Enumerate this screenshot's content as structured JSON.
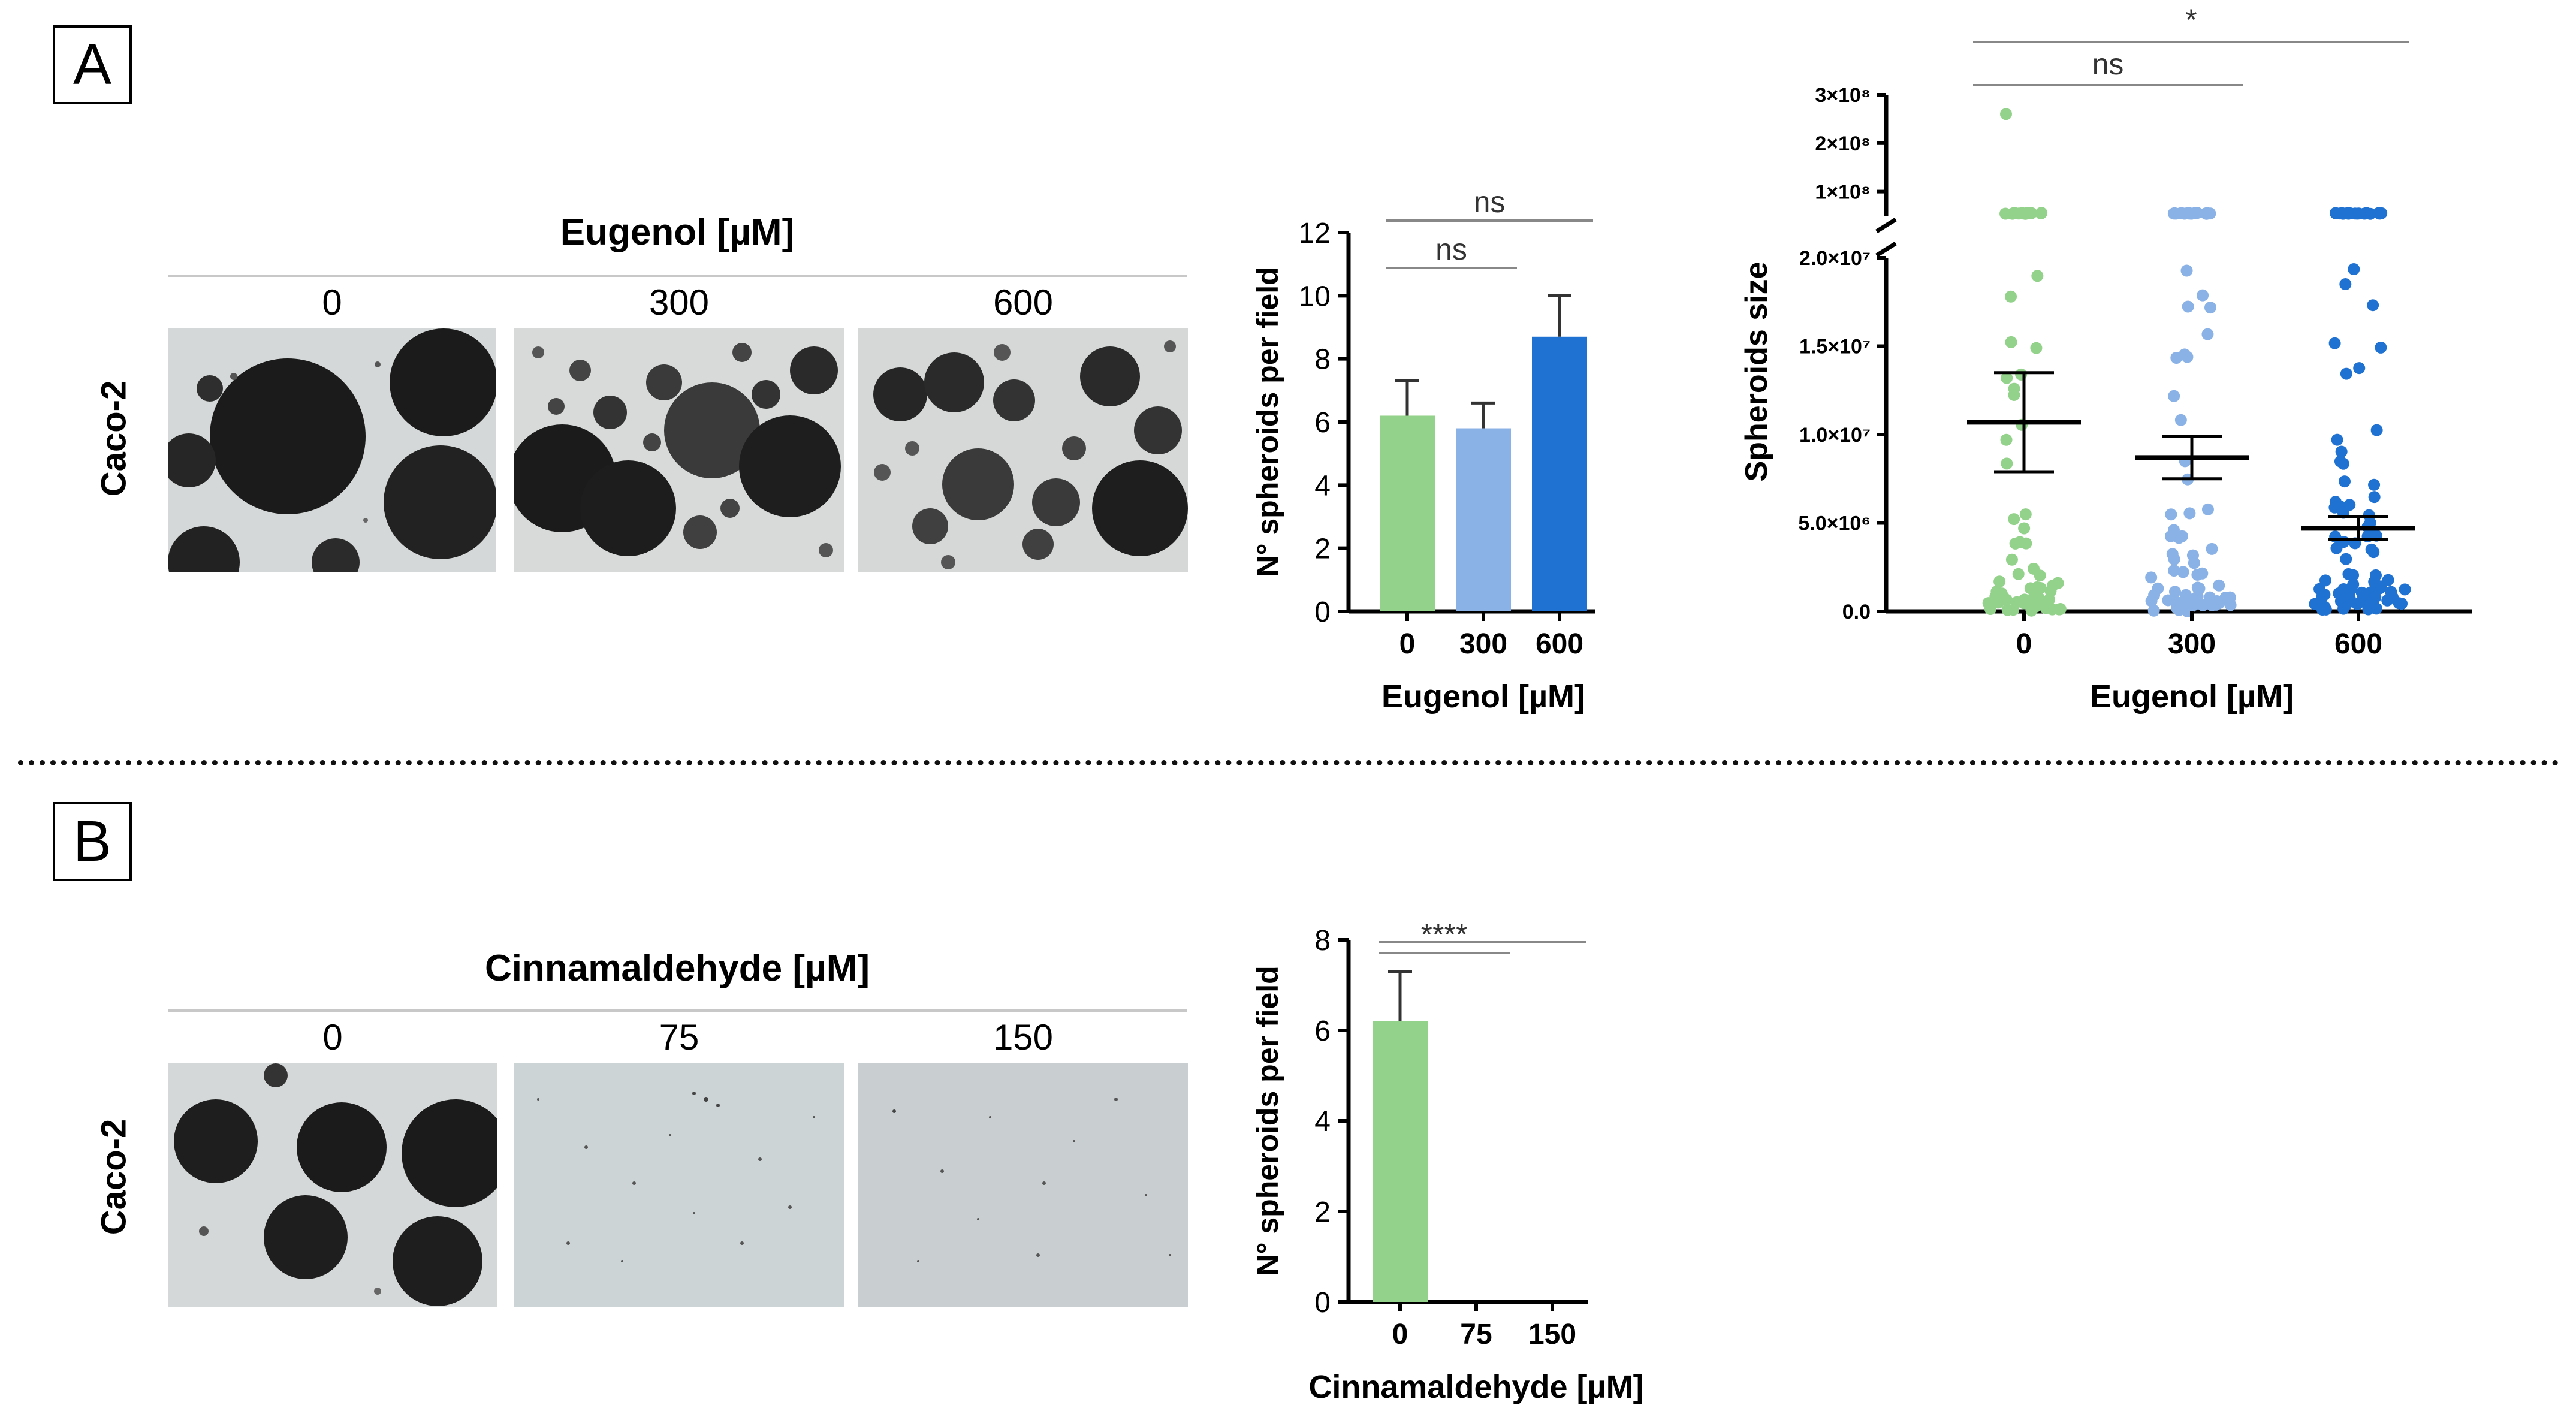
{
  "panel_a": {
    "label": "A",
    "compound": "Eugenol [µM]",
    "row_label": "Caco-2",
    "doses": [
      "0",
      "300",
      "600"
    ]
  },
  "panel_b": {
    "label": "B",
    "compound": "Cinnamaldehyde [µM]",
    "row_label": "Caco-2",
    "doses": [
      "0",
      "75",
      "150"
    ]
  },
  "colors": {
    "c0": "#93d28a",
    "c300": "#8ab2e6",
    "c600": "#1f72d2"
  },
  "chart_data": [
    {
      "id": "eugenol-spheroid-count",
      "type": "bar",
      "categories": [
        "0",
        "300",
        "600"
      ],
      "values": [
        6.2,
        5.8,
        8.7
      ],
      "errors": [
        1.1,
        0.8,
        1.3
      ],
      "xlabel": "Eugenol [µM]",
      "ylabel": "N° spheroids per field",
      "ylim": [
        0,
        12
      ],
      "yticks": [
        0,
        2,
        4,
        6,
        8,
        10,
        12
      ],
      "significance": [
        {
          "from": "0",
          "to": "300",
          "label": "ns"
        },
        {
          "from": "0",
          "to": "600",
          "label": "ns"
        }
      ]
    },
    {
      "id": "eugenol-spheroid-size",
      "type": "scatter",
      "categories": [
        "0",
        "300",
        "600"
      ],
      "means": [
        10700000,
        8700000,
        4700000
      ],
      "sem": [
        2800000,
        1200000,
        650000
      ],
      "xlabel": "Eugenol [µM]",
      "ylabel": "Spheroids size",
      "ylim": [
        0,
        300000000
      ],
      "axis_break": [
        20000000,
        50000000
      ],
      "yticks_lower": [
        "0.0",
        "5.0×10⁶",
        "1.0×10⁷",
        "1.5×10⁷",
        "2.0×10⁷"
      ],
      "yticks_upper": [
        "1×10⁸",
        "2×10⁸",
        "3×10⁸"
      ],
      "significance": [
        {
          "from": "0",
          "to": "300",
          "label": "ns"
        },
        {
          "from": "0",
          "to": "600",
          "label": "*"
        }
      ]
    },
    {
      "id": "cinnamaldehyde-spheroid-count",
      "type": "bar",
      "categories": [
        "0",
        "75",
        "150"
      ],
      "values": [
        6.2,
        0,
        0
      ],
      "errors": [
        1.1,
        0,
        0
      ],
      "xlabel": "Cinnamaldehyde [µM]",
      "ylabel": "N° spheroids per field",
      "ylim": [
        0,
        8
      ],
      "yticks": [
        0,
        2,
        4,
        6,
        8
      ],
      "significance": [
        {
          "from": "0",
          "to": "75",
          "label": "****"
        },
        {
          "from": "0",
          "to": "150",
          "label": ""
        }
      ]
    }
  ]
}
